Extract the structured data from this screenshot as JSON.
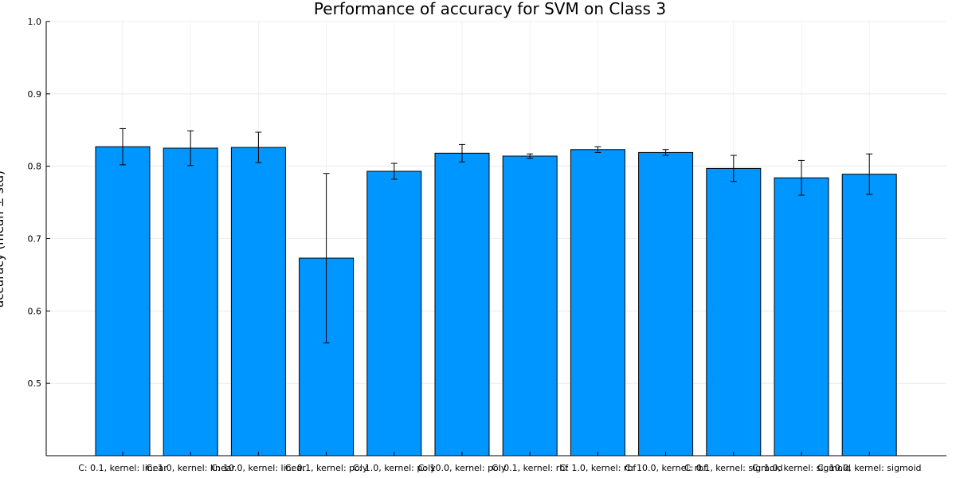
{
  "chart_data": {
    "type": "bar",
    "title": "Performance of accuracy for SVM on Class 3",
    "xlabel": "",
    "ylabel": "accuracy (mean ± std)",
    "ylim": [
      0.4,
      1.0
    ],
    "yticks": [
      0.5,
      0.6,
      0.7,
      0.8,
      0.9,
      1.0
    ],
    "ytick_labels": [
      "0.5",
      "0.6",
      "0.7",
      "0.8",
      "0.9",
      "1.0"
    ],
    "grid": true,
    "legend": "none",
    "bar_color": "#0096ff",
    "categories": [
      "C: 0.1, kernel: linear",
      "C: 1.0, kernel: linear",
      "C: 10.0, kernel: linear",
      "C: 0.1, kernel: poly",
      "C: 1.0, kernel: poly",
      "C: 10.0, kernel: poly",
      "C: 0.1, kernel: rbf",
      "C: 1.0, kernel: rbf",
      "C: 10.0, kernel: rbf",
      "C: 0.1, kernel: sigmoid",
      "C: 1.0, kernel: sigmoid",
      "C: 10.0, kernel: sigmoid"
    ],
    "values": [
      0.827,
      0.825,
      0.826,
      0.673,
      0.793,
      0.818,
      0.814,
      0.823,
      0.819,
      0.797,
      0.784,
      0.789
    ],
    "errors": [
      0.025,
      0.024,
      0.021,
      0.117,
      0.011,
      0.012,
      0.003,
      0.004,
      0.004,
      0.018,
      0.024,
      0.028
    ]
  }
}
